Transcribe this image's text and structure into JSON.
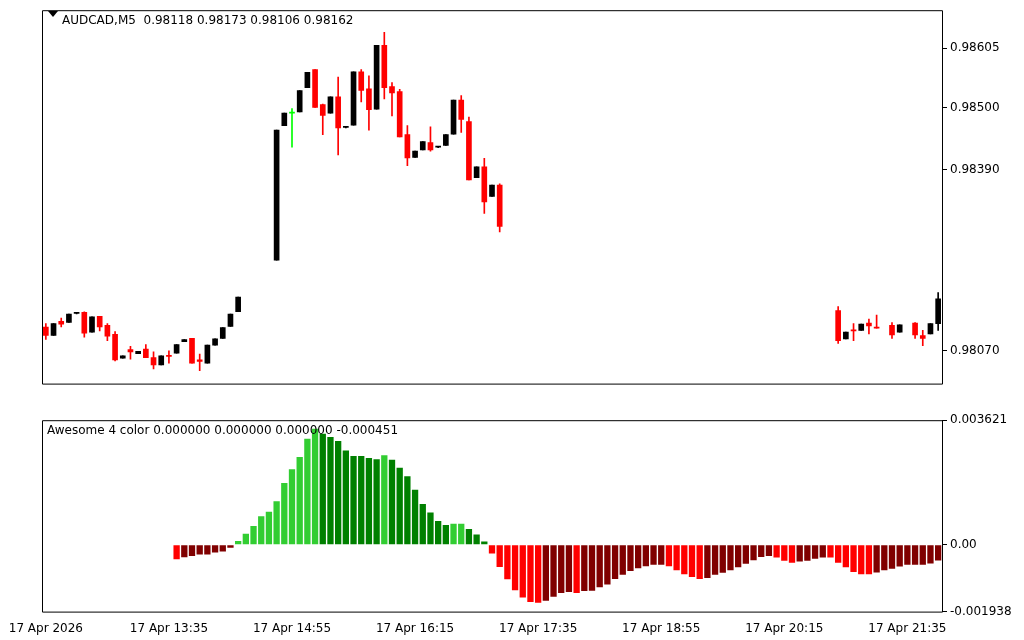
{
  "chart_data": [
    {
      "type": "candlestick",
      "title": "AUDCAD,M5  0.98118 0.98173 0.98106 0.98162",
      "categories": [
        null,
        null,
        null,
        null,
        null,
        null,
        null,
        null,
        null,
        null,
        null,
        null,
        null,
        null,
        null,
        null,
        null,
        null,
        null,
        null,
        null,
        null,
        null,
        null,
        null,
        null,
        null,
        null,
        null,
        null,
        null,
        null,
        null,
        null,
        null,
        null,
        null,
        null,
        null,
        null,
        null,
        null,
        null,
        null,
        null,
        null,
        null,
        null,
        null,
        null,
        null,
        null,
        null,
        null,
        null,
        null,
        null,
        null,
        null,
        null,
        null,
        null,
        null,
        null,
        null,
        null,
        null,
        null,
        null,
        null,
        null,
        null,
        null,
        null,
        null,
        null,
        null,
        null,
        null,
        null,
        null,
        null,
        null,
        null,
        null,
        null,
        null,
        null,
        null,
        null,
        null,
        null,
        null,
        null,
        null,
        null,
        null,
        null,
        null,
        null,
        null,
        null,
        null,
        null,
        null,
        null,
        null,
        null,
        null,
        null,
        null,
        null,
        null,
        null,
        null,
        null,
        null
      ],
      "ohlc": [
        [
          0.98112,
          0.98118,
          0.9809,
          0.98097
        ],
        [
          0.98097,
          0.98118,
          0.98097,
          0.98118
        ],
        [
          0.98122,
          0.98128,
          0.98112,
          0.98117
        ],
        [
          0.9812,
          0.98135,
          0.9812,
          0.98135
        ],
        [
          0.98136,
          0.98137,
          0.98135,
          0.98136
        ],
        [
          0.98138,
          0.98139,
          0.98094,
          0.98101
        ],
        [
          0.98103,
          0.9813,
          0.98103,
          0.9813
        ],
        [
          0.98131,
          0.98131,
          0.98105,
          0.98112
        ],
        [
          0.98115,
          0.98118,
          0.98088,
          0.98096
        ],
        [
          0.98099,
          0.98104,
          0.98052,
          0.98054
        ],
        [
          0.98057,
          0.98061,
          0.98057,
          0.98061
        ],
        [
          0.98072,
          0.98078,
          0.98055,
          0.98068
        ],
        [
          0.98065,
          0.98069,
          0.98065,
          0.98069
        ],
        [
          0.98073,
          0.98081,
          0.98058,
          0.98058
        ],
        [
          0.98058,
          0.98068,
          0.98038,
          0.98045
        ],
        [
          0.98045,
          0.98061,
          0.98045,
          0.98061
        ],
        [
          0.98061,
          0.9807,
          0.98048,
          0.9806
        ],
        [
          0.98066,
          0.98081,
          0.98066,
          0.98081
        ],
        [
          0.98086,
          0.9809,
          0.98086,
          0.9809
        ],
        [
          0.98092,
          0.98092,
          0.98048,
          0.98048
        ],
        [
          0.98054,
          0.98064,
          0.98035,
          0.98051
        ],
        [
          0.98048,
          0.9808,
          0.98048,
          0.9808
        ],
        [
          0.9808,
          0.98091,
          0.9808,
          0.98091
        ],
        [
          0.98092,
          0.98111,
          0.98092,
          0.98111
        ],
        [
          0.98113,
          0.98135,
          0.98113,
          0.98135
        ],
        [
          0.98139,
          0.98165,
          0.98139,
          0.98165
        ],
        null,
        null,
        null,
        null,
        [
          0.9823,
          0.9846,
          0.9823,
          0.9846
        ],
        [
          0.98468,
          0.9849,
          0.98468,
          0.9849
        ],
        [
          0.9849,
          0.98498,
          0.9843,
          0.9849
        ],
        [
          0.98492,
          0.9853,
          0.98492,
          0.9853
        ],
        [
          0.98535,
          0.98562,
          0.98535,
          0.98562
        ],
        [
          0.98567,
          0.98567,
          0.985,
          0.985
        ],
        [
          0.98505,
          0.98506,
          0.98452,
          0.98486
        ],
        [
          0.9849,
          0.98519,
          0.9849,
          0.98519
        ],
        [
          0.98519,
          0.98554,
          0.98416,
          0.98464
        ],
        [
          0.98465,
          0.98466,
          0.98464,
          0.98465
        ],
        [
          0.98469,
          0.98563,
          0.98469,
          0.98563
        ],
        [
          0.98563,
          0.98567,
          0.9851,
          0.9853
        ],
        [
          0.98533,
          0.98556,
          0.9846,
          0.98496
        ],
        [
          0.98497,
          0.9861,
          0.98497,
          0.9861
        ],
        [
          0.9861,
          0.98633,
          0.98515,
          0.98535
        ],
        [
          0.98537,
          0.98544,
          0.98485,
          0.98526
        ],
        [
          0.98528,
          0.98532,
          0.98448,
          0.98448
        ],
        [
          0.98452,
          0.98468,
          0.98397,
          0.98411
        ],
        [
          0.98412,
          0.98423,
          0.98412,
          0.98423
        ],
        [
          0.98425,
          0.9844,
          0.98425,
          0.9844
        ],
        [
          0.98438,
          0.98466,
          0.98423,
          0.98425
        ],
        [
          0.9843,
          0.98431,
          0.98429,
          0.9843
        ],
        [
          0.98433,
          0.98452,
          0.98433,
          0.98452
        ],
        [
          0.98453,
          0.98513,
          0.98453,
          0.98513
        ],
        [
          0.98513,
          0.98521,
          0.98456,
          0.98479
        ],
        [
          0.98475,
          0.98483,
          0.98372,
          0.98372
        ],
        [
          0.98376,
          0.98395,
          0.98376,
          0.98395
        ],
        [
          0.98395,
          0.9841,
          0.98313,
          0.98333
        ],
        [
          0.98343,
          0.98363,
          0.98343,
          0.98363
        ],
        [
          0.98363,
          0.98365,
          0.9828,
          0.9829
        ],
        null,
        null,
        null,
        null,
        null,
        null,
        null,
        null,
        null,
        null,
        null,
        null,
        null,
        null,
        null,
        null,
        null,
        null,
        null,
        null,
        null,
        null,
        null,
        null,
        null,
        null,
        null,
        null,
        null,
        null,
        null,
        null,
        null,
        null,
        null,
        null,
        null,
        null,
        null,
        null,
        null,
        null,
        null,
        [
          0.98141,
          0.98148,
          0.98083,
          0.98088
        ],
        [
          0.98091,
          0.98103,
          0.98091,
          0.98103
        ],
        [
          0.98107,
          0.98118,
          0.98088,
          0.98105
        ],
        [
          0.98106,
          0.98117,
          0.98106,
          0.98117
        ],
        [
          0.98119,
          0.98126,
          0.981,
          0.98114
        ],
        [
          0.98112,
          0.98133,
          0.9811,
          0.9811
        ],
        null,
        [
          0.98115,
          0.9812,
          0.98092,
          0.98098
        ],
        [
          0.98103,
          0.98116,
          0.98103,
          0.98116
        ],
        null,
        [
          0.98119,
          0.9812,
          0.98092,
          0.98098
        ],
        [
          0.98097,
          0.98106,
          0.98079,
          0.98092
        ],
        [
          0.981,
          0.98118,
          0.981,
          0.98118
        ],
        [
          0.98118,
          0.98173,
          0.98106,
          0.98162
        ]
      ],
      "colors": [
        "#ff0000",
        "#000000",
        "#ff0000",
        "#000000",
        "#000000",
        "#ff0000",
        "#000000",
        "#ff0000",
        "#ff0000",
        "#ff0000",
        "#000000",
        "#ff0000",
        "#000000",
        "#ff0000",
        "#ff0000",
        "#000000",
        "#ff0000",
        "#000000",
        "#000000",
        "#ff0000",
        "#ff0000",
        "#000000",
        "#000000",
        "#000000",
        "#000000",
        "#000000",
        null,
        null,
        null,
        null,
        "#000000",
        "#000000",
        "#00ff00",
        "#000000",
        "#000000",
        "#ff0000",
        "#ff0000",
        "#000000",
        "#ff0000",
        "#000000",
        "#000000",
        "#ff0000",
        "#ff0000",
        "#000000",
        "#ff0000",
        "#ff0000",
        "#ff0000",
        "#ff0000",
        "#000000",
        "#000000",
        "#ff0000",
        "#000000",
        "#000000",
        "#000000",
        "#ff0000",
        "#ff0000",
        "#000000",
        "#ff0000",
        "#000000",
        "#ff0000",
        null,
        null,
        null,
        null,
        null,
        null,
        null,
        null,
        null,
        null,
        null,
        null,
        null,
        null,
        null,
        null,
        null,
        null,
        null,
        null,
        null,
        null,
        null,
        null,
        null,
        null,
        null,
        null,
        null,
        null,
        null,
        null,
        null,
        null,
        null,
        null,
        null,
        null,
        null,
        null,
        null,
        null,
        null,
        "#ff0000",
        "#000000",
        "#ff0000",
        "#000000",
        "#ff0000",
        "#ff0000",
        null,
        "#ff0000",
        "#000000",
        null,
        "#ff0000",
        "#ff0000",
        "#000000",
        "#000000"
      ],
      "ylim": [
        0.98012,
        0.98672
      ],
      "yticks": [
        {
          "value": 0.98605,
          "label": "0.98605"
        },
        {
          "value": 0.985,
          "label": "0.98500"
        },
        {
          "value": 0.9839,
          "label": "0.98390"
        },
        {
          "value": 0.9807,
          "label": "0.98070"
        }
      ]
    },
    {
      "type": "bar",
      "title": "Awesome 4 color 0.000000 0.000000 0.000000 -0.000451",
      "categories": [
        "17 Apr 2026",
        null,
        null,
        null,
        null,
        null,
        null,
        null,
        null,
        null,
        null,
        null,
        null,
        null,
        null,
        null,
        "17 Apr 13:35",
        null,
        null,
        null,
        null,
        null,
        null,
        null,
        null,
        null,
        null,
        null,
        null,
        null,
        null,
        null,
        "17 Apr 14:55",
        null,
        null,
        null,
        null,
        null,
        null,
        null,
        null,
        null,
        null,
        null,
        null,
        null,
        null,
        null,
        "17 Apr 16:15",
        null,
        null,
        null,
        null,
        null,
        null,
        null,
        null,
        null,
        null,
        null,
        null,
        null,
        null,
        null,
        "17 Apr 17:35",
        null,
        null,
        null,
        null,
        null,
        null,
        null,
        null,
        null,
        null,
        null,
        null,
        null,
        null,
        null,
        "17 Apr 18:55",
        null,
        null,
        null,
        null,
        null,
        null,
        null,
        null,
        null,
        null,
        null,
        null,
        null,
        null,
        null,
        "17 Apr 20:15",
        null,
        null,
        null,
        null,
        null,
        null,
        null,
        null,
        null,
        null,
        null,
        null,
        null,
        null,
        null,
        "17 Apr 21:35",
        null,
        null,
        null,
        null
      ],
      "values": [
        null,
        null,
        null,
        null,
        null,
        null,
        null,
        null,
        null,
        null,
        null,
        null,
        null,
        null,
        null,
        null,
        null,
        -0.00042,
        -0.00036,
        -0.00032,
        -0.00028,
        -0.00028,
        -0.00022,
        -0.00019,
        -8e-05,
        0.00011,
        0.00032,
        0.00055,
        0.00083,
        0.00096,
        0.00127,
        0.0018,
        0.0022,
        0.00255,
        0.00308,
        0.00337,
        0.00323,
        0.00313,
        0.00302,
        0.00274,
        0.00258,
        0.00258,
        0.00252,
        0.00249,
        0.0026,
        0.00247,
        0.00224,
        0.00199,
        0.0016,
        0.00119,
        0.00094,
        0.00069,
        0.00058,
        0.00061,
        0.00061,
        0.00046,
        0.0003,
        0.0001,
        -0.00025,
        -0.00064,
        -0.001,
        -0.00132,
        -0.00153,
        -0.00166,
        -0.00168,
        -0.00162,
        -0.00151,
        -0.0014,
        -0.00137,
        -0.0014,
        -0.00134,
        -0.00133,
        -0.00123,
        -0.00115,
        -0.00099,
        -0.00087,
        -0.00076,
        -0.00068,
        -0.00062,
        -0.00058,
        -0.00058,
        -0.00062,
        -0.00074,
        -0.00085,
        -0.00093,
        -0.00099,
        -0.00096,
        -0.00087,
        -0.00081,
        -0.00074,
        -0.00065,
        -0.00055,
        -0.00045,
        -0.00035,
        -0.00032,
        -0.00037,
        -0.00046,
        -0.00052,
        -0.00048,
        -0.00046,
        -0.0004,
        -0.00037,
        -0.00037,
        -0.00052,
        -0.00065,
        -0.00079,
        -0.00085,
        -0.00085,
        -0.0008,
        -0.00074,
        -0.00069,
        -0.00063,
        -0.00058,
        -0.00058,
        -0.00058,
        -0.00054,
        -0.000451
      ],
      "colors": [
        null,
        null,
        null,
        null,
        null,
        null,
        null,
        null,
        null,
        null,
        null,
        null,
        null,
        null,
        null,
        null,
        null,
        "#ff0000",
        "#800000",
        "#800000",
        "#800000",
        "#800000",
        "#800000",
        "#800000",
        "#800000",
        "#32cd32",
        "#32cd32",
        "#32cd32",
        "#32cd32",
        "#32cd32",
        "#32cd32",
        "#32cd32",
        "#32cd32",
        "#32cd32",
        "#32cd32",
        "#32cd32",
        "#008000",
        "#008000",
        "#008000",
        "#008000",
        "#008000",
        "#008000",
        "#008000",
        "#008000",
        "#32cd32",
        "#008000",
        "#008000",
        "#008000",
        "#008000",
        "#008000",
        "#008000",
        "#008000",
        "#008000",
        "#32cd32",
        "#32cd32",
        "#008000",
        "#008000",
        "#008000",
        "#ff0000",
        "#ff0000",
        "#ff0000",
        "#ff0000",
        "#ff0000",
        "#ff0000",
        "#ff0000",
        "#800000",
        "#800000",
        "#800000",
        "#800000",
        "#ff0000",
        "#800000",
        "#800000",
        "#800000",
        "#800000",
        "#800000",
        "#800000",
        "#800000",
        "#800000",
        "#800000",
        "#800000",
        "#800000",
        "#ff0000",
        "#ff0000",
        "#ff0000",
        "#ff0000",
        "#ff0000",
        "#800000",
        "#800000",
        "#800000",
        "#800000",
        "#800000",
        "#800000",
        "#800000",
        "#800000",
        "#800000",
        "#ff0000",
        "#ff0000",
        "#ff0000",
        "#800000",
        "#800000",
        "#800000",
        "#800000",
        "#ff0000",
        "#ff0000",
        "#ff0000",
        "#ff0000",
        "#ff0000",
        "#ff0000",
        "#800000",
        "#800000",
        "#800000",
        "#800000",
        "#800000",
        "#800000",
        "#800000",
        "#800000",
        "#800000"
      ],
      "ylim": [
        -0.001938,
        0.003621
      ],
      "yticks": [
        {
          "value": 0.003621,
          "label": "0.003621"
        },
        {
          "value": 0,
          "label": "0.00"
        },
        {
          "value": -0.001938,
          "label": "-0.001938"
        }
      ]
    }
  ]
}
